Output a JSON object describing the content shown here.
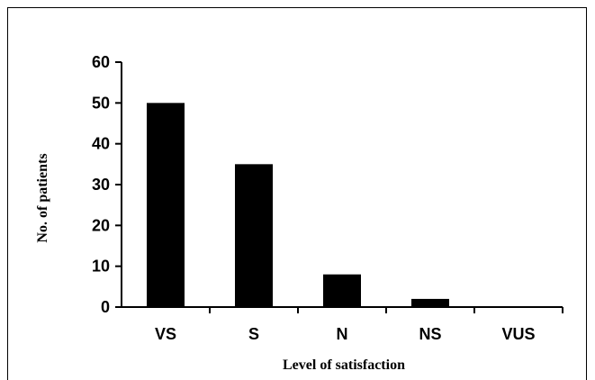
{
  "chart_data": {
    "type": "bar",
    "categories": [
      "VS",
      "S",
      "N",
      "NS",
      "VUS"
    ],
    "values": [
      50,
      35,
      8,
      2,
      0
    ],
    "xlabel": "Level of satisfaction",
    "ylabel": "No. of patients",
    "ylim": [
      0,
      60
    ],
    "yticks": [
      0,
      10,
      20,
      30,
      40,
      50,
      60
    ],
    "grid": false,
    "legend": "none",
    "bar_color": "#000000"
  }
}
